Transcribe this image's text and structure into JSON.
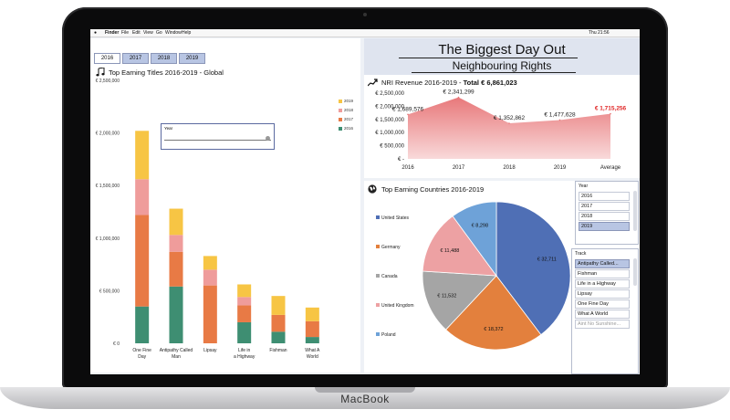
{
  "device": {
    "brand": "MacBook"
  },
  "menubar": {
    "items": [
      "Finder",
      "File",
      "Edit",
      "View",
      "Go",
      "Window",
      "Help"
    ],
    "clock": "Thu 21:56"
  },
  "tabs": [
    "2016",
    "2017",
    "2018",
    "2019"
  ],
  "active_tab": "2016",
  "left_chart": {
    "title": "Top Earning Titles 2016-2019 - Global",
    "year_popup_label": "Year",
    "chart_data": {
      "type": "bar",
      "stacked": true,
      "categories": [
        "One Fine Day",
        "Antipathy Called Man",
        "Lipsay",
        "Life in a Highway",
        "Fishman",
        "What A World"
      ],
      "series": [
        {
          "name": "2016",
          "color": "#3e8e72",
          "values": [
            350000,
            540000,
            0,
            200000,
            110000,
            60000
          ]
        },
        {
          "name": "2017",
          "color": "#e87a45",
          "values": [
            870000,
            330000,
            550000,
            160000,
            160000,
            150000
          ]
        },
        {
          "name": "2018",
          "color": "#ef9c9b",
          "values": [
            340000,
            160000,
            150000,
            80000,
            0,
            0
          ]
        },
        {
          "name": "2019",
          "color": "#f7c544",
          "values": [
            460000,
            250000,
            130000,
            120000,
            180000,
            130000
          ]
        }
      ],
      "ylim": [
        0,
        2500000
      ],
      "yticks": [
        "€ 0",
        "€ 500,000",
        "€ 1,000,000",
        "€ 1,500,000",
        "€ 2,000,000",
        "€ 2,500,000"
      ],
      "legend": [
        "2019",
        "2018",
        "2017",
        "2016"
      ],
      "legend_position": "right"
    }
  },
  "header": {
    "title": "The Biggest Day Out",
    "subtitle": "Neighbouring Rights"
  },
  "revenue_chart": {
    "title": "NRI Revenue 2016-2019 - ",
    "total": "Total € 6,861,023",
    "chart_data": {
      "type": "area",
      "categories": [
        "2016",
        "2017",
        "2018",
        "2019",
        "Average"
      ],
      "values": [
        1689576,
        2341299,
        1352862,
        1477628,
        1715256
      ],
      "labels": [
        "€ 1,689,576",
        "€ 2,341,299",
        "€ 1,352,862",
        "€ 1,477,628",
        "€ 1,715,256"
      ],
      "ylim": [
        0,
        2500000
      ],
      "yticks": [
        "€ -",
        "€ 500,000",
        "€ 1,000,000",
        "€ 1,500,000",
        "€ 2,000,000",
        "€ 2,500,000"
      ],
      "color": "#e8787a",
      "highlight_color": "#e02424"
    }
  },
  "countries_chart": {
    "title": "Top Earning Countries 2016-2019",
    "chart_data": {
      "type": "pie",
      "labels": [
        "United States",
        "Germany",
        "Canada",
        "United Kingdom",
        "Poland"
      ],
      "values": [
        32711,
        18372,
        11532,
        11488,
        8298
      ],
      "value_labels": [
        "€ 32,711",
        "€ 18,372",
        "€ 11,532",
        "€ 11,488",
        "€ 8,298"
      ],
      "colors": [
        "#4f6fb5",
        "#e3803d",
        "#a5a5a5",
        "#eda1a3",
        "#6ea2d8"
      ],
      "legend_position": "left"
    }
  },
  "year_slicer": {
    "label": "Year",
    "items": [
      "2016",
      "2017",
      "2018",
      "2019"
    ],
    "selected": "2019"
  },
  "track_slicer": {
    "label": "Track",
    "items": [
      "Antipathy Called...",
      "Fishman",
      "Life in a Highway",
      "Lipsay",
      "One Fine Day",
      "What A World",
      "Aint No Sunshine..."
    ],
    "selected": "Antipathy Called..."
  }
}
